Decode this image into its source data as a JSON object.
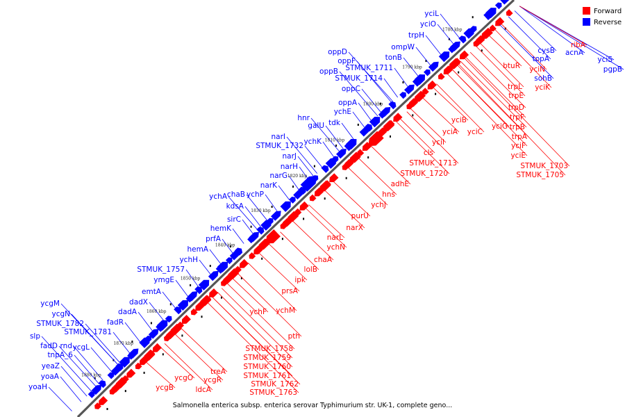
{
  "caption": "Salmonella enterica subsp. enterica serovar Typhimurium str. UK-1, complete geno...",
  "legend": [
    {
      "label": "Forward",
      "color": "#ff0000"
    },
    {
      "label": "Reverse",
      "color": "#0000ff"
    }
  ],
  "colors": {
    "forward": "#ff0000",
    "reverse": "#0000ff",
    "backbone": "#555555",
    "other": "#000000"
  },
  "kbp_ticks": [
    "1770 kbp",
    "1780 kbp",
    "1790 kbp",
    "1800 kbp",
    "1810 kbp",
    "1820 kbp",
    "1830 kbp",
    "1840 kbp",
    "1850 kbp",
    "1860 kbp",
    "1870 kbp",
    "1880 kbp"
  ],
  "reverse_labels": [
    "yciL",
    "yciO",
    "trpH",
    "ompW",
    "tonB",
    "oppD",
    "oppF",
    "STMUK_1711",
    "oppB",
    "STMUK_1714",
    "oppC",
    "oppA",
    "ychE",
    "hnr",
    "tdk",
    "galU",
    "ychK",
    "narI",
    "STMUK_1732",
    "narJ",
    "narH",
    "narG",
    "narK",
    "ychA",
    "chaB",
    "ychP",
    "kdsA",
    "sirC",
    "hemK",
    "prfA",
    "hemA",
    "ychH",
    "STMUK_1757",
    "ymgE",
    "emtA",
    "dadX",
    "dadA",
    "fadR",
    "ycgM",
    "ycgN",
    "STMUK_1782",
    "STMUK_1781",
    "slp",
    "ycgL",
    "fadD",
    "rnd",
    "tnpA_6",
    "yeaZ",
    "yoaA",
    "yoaH",
    "cysB",
    "acnA",
    "yciS",
    "pgpB",
    "topA",
    "sohB"
  ],
  "forward_labels": [
    "ribA",
    "btuR",
    "yciN",
    "yciK",
    "trpL",
    "trpE",
    "trpD",
    "trpF",
    "trpB",
    "yciG",
    "trpA",
    "yciF",
    "yciE",
    "STMUK_1703",
    "STMUK_1705",
    "yciB",
    "yciC",
    "yciA",
    "yciI",
    "cls",
    "STMUK_1713",
    "STMUK_1720",
    "adhE",
    "hns",
    "ychJ",
    "purU",
    "narX",
    "narL",
    "ychN",
    "chaA",
    "lolB",
    "ipk",
    "prsA",
    "ychF",
    "ychM",
    "pth",
    "STMUK_1758",
    "STMUK_1759",
    "STMUK_1760",
    "STMUK_1761",
    "STMUK_1762",
    "STMUK_1763",
    "treA",
    "ycgR",
    "ycgO",
    "ldcA",
    "ycgB"
  ]
}
